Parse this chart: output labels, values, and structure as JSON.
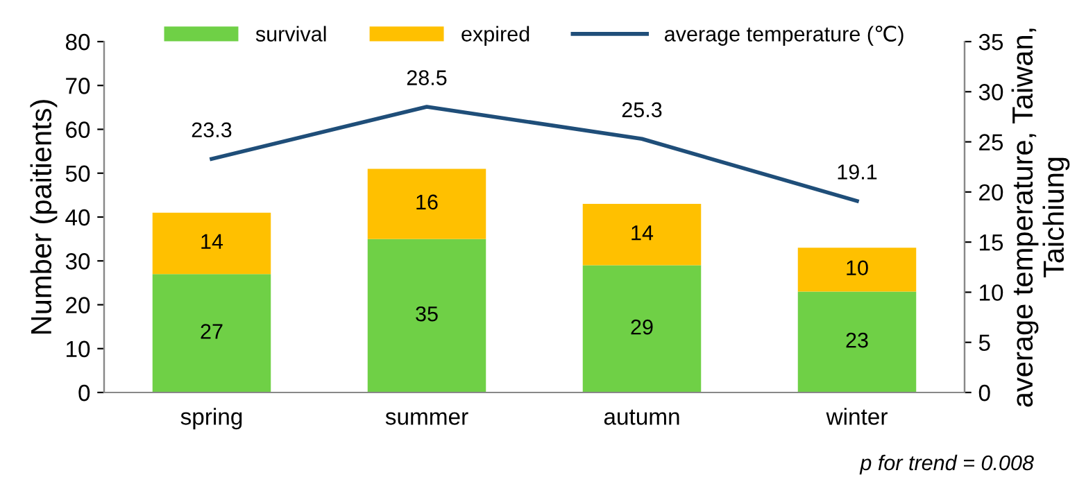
{
  "chart_data": {
    "type": "bar",
    "stacked": true,
    "categories": [
      "spring",
      "summer",
      "autumn",
      "winter"
    ],
    "series": [
      {
        "name": "survival",
        "color": "#6fd046",
        "values": [
          27,
          35,
          29,
          23
        ]
      },
      {
        "name": "expired",
        "color": "#ffc000",
        "values": [
          14,
          16,
          14,
          10
        ]
      },
      {
        "name": "average temperature (℃)",
        "type": "line",
        "axis": "y2",
        "color": "#1f4e79",
        "values": [
          23.3,
          28.5,
          25.3,
          19.1
        ]
      }
    ],
    "ylabel": "Number (paitients)",
    "y2label": "average temperature, Taiwan,\nTaichiung",
    "ylim": [
      0,
      80
    ],
    "yticks": [
      0,
      10,
      20,
      30,
      40,
      50,
      60,
      70,
      80
    ],
    "y2lim": [
      0,
      35
    ],
    "y2ticks": [
      0,
      5,
      10,
      15,
      20,
      25,
      30,
      35
    ],
    "data_labels": true,
    "legend": "top",
    "grid": false,
    "marker": "none",
    "line_style": "solid",
    "annotations": [
      "p for trend = 0.008"
    ]
  }
}
